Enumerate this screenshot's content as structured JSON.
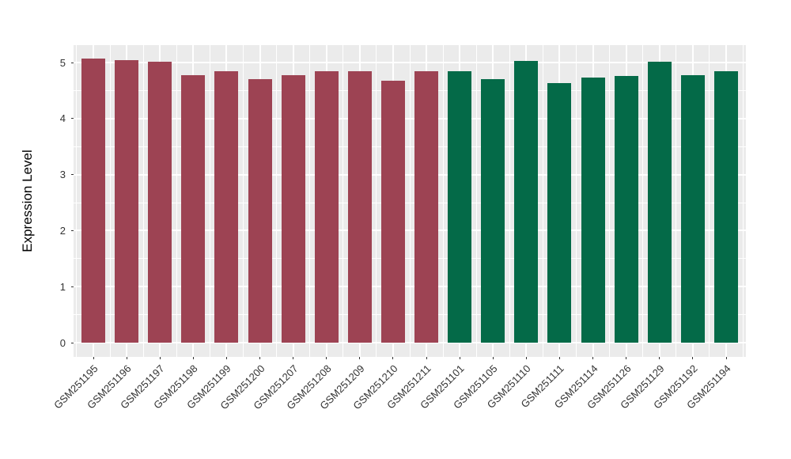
{
  "figure": {
    "background_color": "#FFFFFF"
  },
  "chart_data": {
    "type": "bar",
    "title": "",
    "xlabel": "",
    "ylabel": "Expression Level",
    "categories": [
      "GSM251195",
      "GSM251196",
      "GSM251197",
      "GSM251198",
      "GSM251199",
      "GSM251200",
      "GSM251207",
      "GSM251208",
      "GSM251209",
      "GSM251210",
      "GSM251211",
      "GSM251101",
      "GSM251105",
      "GSM251110",
      "GSM251111",
      "GSM251114",
      "GSM251126",
      "GSM251129",
      "GSM251192",
      "GSM251194"
    ],
    "values": [
      5.07,
      5.04,
      5.01,
      4.78,
      4.84,
      4.7,
      4.78,
      4.84,
      4.84,
      4.68,
      4.85,
      4.85,
      4.7,
      5.03,
      4.63,
      4.73,
      4.76,
      5.02,
      4.77,
      4.85
    ],
    "bar_colors": [
      "#9D4353",
      "#9D4353",
      "#9D4353",
      "#9D4353",
      "#9D4353",
      "#9D4353",
      "#9D4353",
      "#9D4353",
      "#9D4353",
      "#9D4353",
      "#9D4353",
      "#046A48",
      "#046A48",
      "#046A48",
      "#046A48",
      "#046A48",
      "#046A48",
      "#046A48",
      "#046A48",
      "#046A48"
    ],
    "groups": [
      {
        "name": "red-group",
        "color": "#9D4353",
        "bar_count": 11
      },
      {
        "name": "green-group",
        "color": "#046A48",
        "bar_count": 9
      }
    ],
    "y_ticks": [
      0,
      1,
      2,
      3,
      4,
      5
    ],
    "y_minor_ticks": [
      0.5,
      1.5,
      2.5,
      3.5,
      4.5
    ],
    "ylim": [
      0,
      5.31
    ],
    "x_tick_angle_deg": 45,
    "grid": true,
    "legend_shown": false,
    "panel_background": "#EBEBEB",
    "grid_color": "#FFFFFF",
    "axis_text_color": "#333333",
    "axis_title_color": "#000000"
  }
}
